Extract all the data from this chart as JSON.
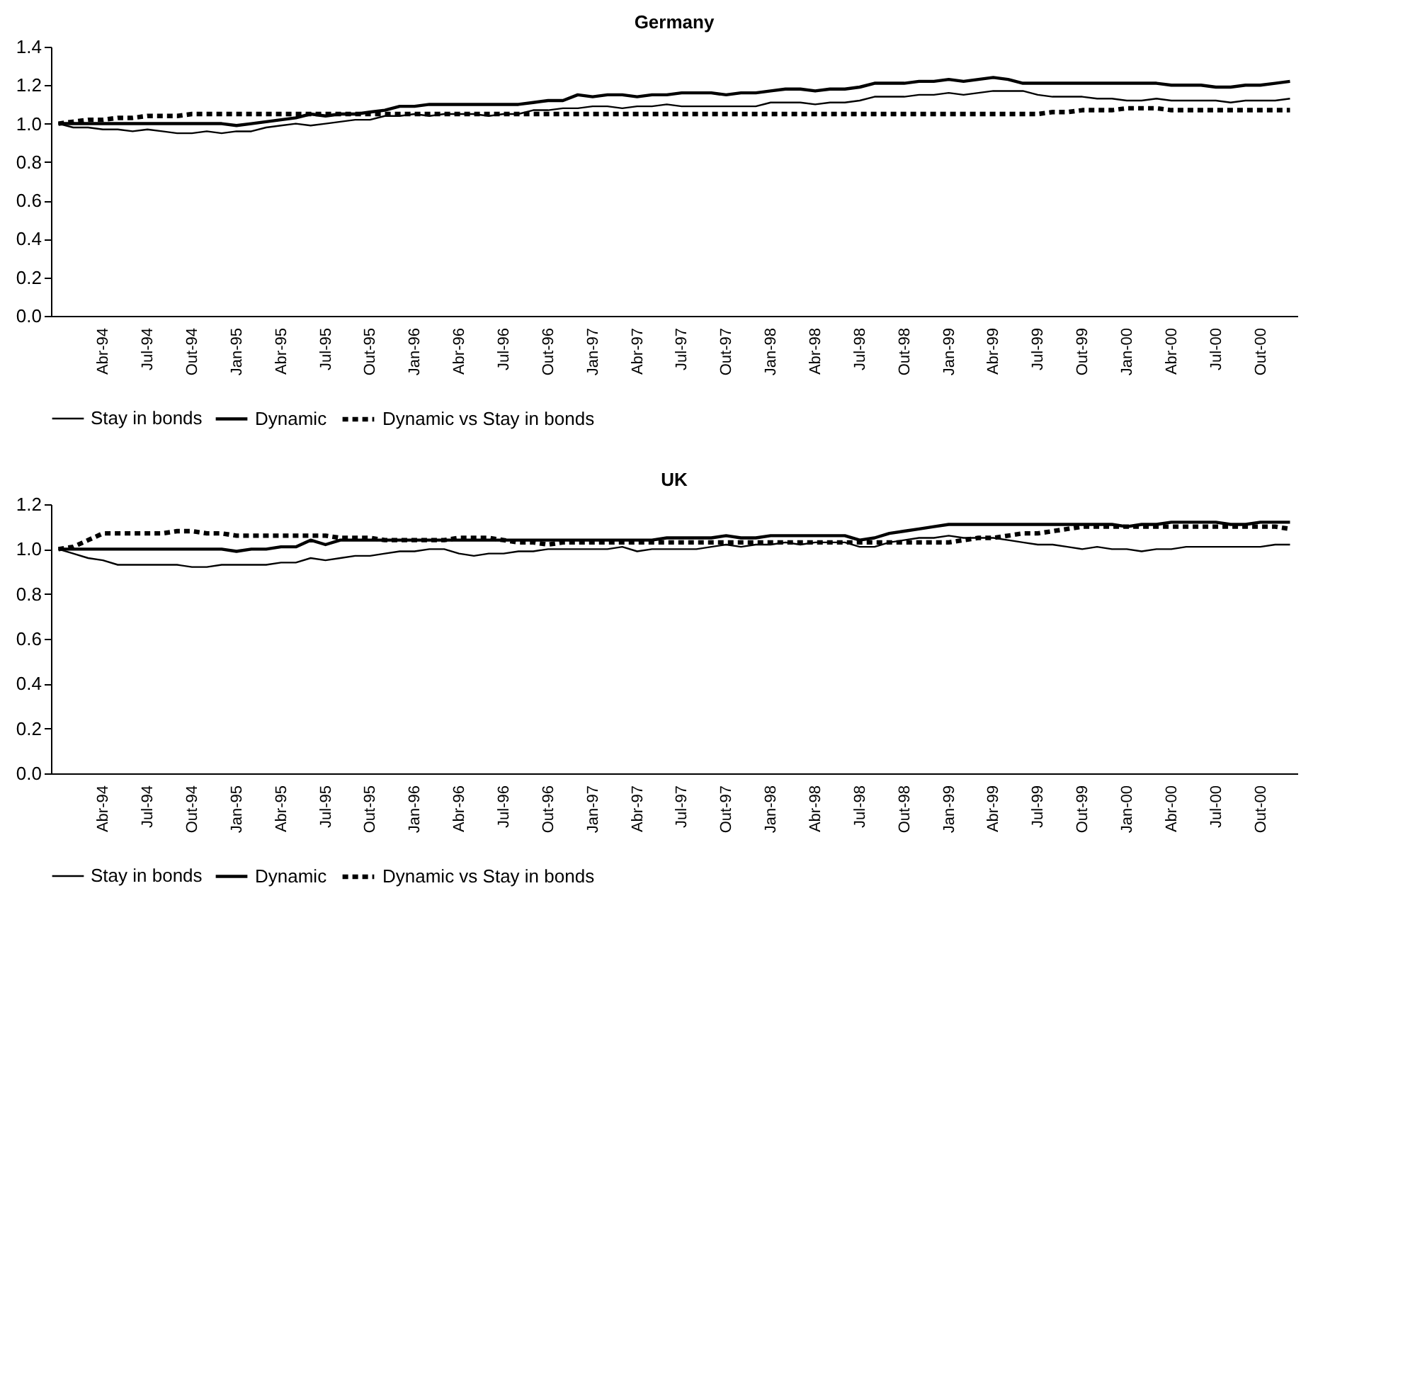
{
  "chart_data": [
    {
      "type": "line",
      "title": "Germany",
      "legend": "bottom",
      "grid": false,
      "categories": [
        null,
        null,
        null,
        "Abr-94",
        null,
        null,
        "Jul-94",
        null,
        null,
        "Out-94",
        null,
        null,
        "Jan-95",
        null,
        null,
        "Abr-95",
        null,
        null,
        "Jul-95",
        null,
        null,
        "Out-95",
        null,
        null,
        "Jan-96",
        null,
        null,
        "Abr-96",
        null,
        null,
        "Jul-96",
        null,
        null,
        "Out-96",
        null,
        null,
        "Jan-97",
        null,
        null,
        "Abr-97",
        null,
        null,
        "Jul-97",
        null,
        null,
        "Out-97",
        null,
        null,
        "Jan-98",
        null,
        null,
        "Abr-98",
        null,
        null,
        "Jul-98",
        null,
        null,
        "Out-98",
        null,
        null,
        "Jan-99",
        null,
        null,
        "Abr-99",
        null,
        null,
        "Jul-99",
        null,
        null,
        "Out-99",
        null,
        null,
        "Jan-00",
        null,
        null,
        "Abr-00",
        null,
        null,
        "Jul-00",
        null,
        null,
        "Out-00",
        null,
        null
      ],
      "ylim": [
        0,
        1.4
      ],
      "yticks": [
        {
          "value": 0,
          "label": "0.0"
        },
        {
          "value": 0.2,
          "label": "0.2"
        },
        {
          "value": 0.4,
          "label": "0.4"
        },
        {
          "value": 0.6,
          "label": "0.6"
        },
        {
          "value": 0.8,
          "label": "0.8"
        },
        {
          "value": 1,
          "label": "1.0"
        },
        {
          "value": 1.2,
          "label": "1.2"
        },
        {
          "value": 1.4,
          "label": "1.4"
        }
      ],
      "series": [
        {
          "name": "Stay in bonds",
          "color": "#000000",
          "line_style": "solid",
          "values": [
            1.0,
            0.98,
            0.98,
            0.97,
            0.97,
            0.96,
            0.97,
            0.96,
            0.95,
            0.95,
            0.96,
            0.95,
            0.96,
            0.96,
            0.98,
            0.99,
            1.0,
            0.99,
            1.0,
            1.01,
            1.02,
            1.02,
            1.04,
            1.04,
            1.05,
            1.04,
            1.05,
            1.05,
            1.05,
            1.04,
            1.05,
            1.05,
            1.07,
            1.07,
            1.08,
            1.08,
            1.09,
            1.09,
            1.08,
            1.09,
            1.09,
            1.1,
            1.09,
            1.09,
            1.09,
            1.09,
            1.09,
            1.09,
            1.11,
            1.11,
            1.11,
            1.1,
            1.11,
            1.11,
            1.12,
            1.14,
            1.14,
            1.14,
            1.15,
            1.15,
            1.16,
            1.15,
            1.16,
            1.17,
            1.17,
            1.17,
            1.15,
            1.14,
            1.14,
            1.14,
            1.13,
            1.13,
            1.12,
            1.12,
            1.13,
            1.12,
            1.12,
            1.12,
            1.12,
            1.11,
            1.12,
            1.12,
            1.12,
            1.13
          ]
        },
        {
          "name": "Dynamic",
          "color": "#000000",
          "line_style": "solid",
          "values": [
            1.0,
            1.0,
            1.0,
            1.0,
            1.0,
            1.0,
            1.0,
            1.0,
            1.0,
            1.0,
            1.0,
            1.0,
            0.99,
            1.0,
            1.01,
            1.02,
            1.03,
            1.05,
            1.04,
            1.05,
            1.05,
            1.06,
            1.07,
            1.09,
            1.09,
            1.1,
            1.1,
            1.1,
            1.1,
            1.1,
            1.1,
            1.1,
            1.11,
            1.12,
            1.12,
            1.15,
            1.14,
            1.15,
            1.15,
            1.14,
            1.15,
            1.15,
            1.16,
            1.16,
            1.16,
            1.15,
            1.16,
            1.16,
            1.17,
            1.18,
            1.18,
            1.17,
            1.18,
            1.18,
            1.19,
            1.21,
            1.21,
            1.21,
            1.22,
            1.22,
            1.23,
            1.22,
            1.23,
            1.24,
            1.23,
            1.21,
            1.21,
            1.21,
            1.21,
            1.21,
            1.21,
            1.21,
            1.21,
            1.21,
            1.21,
            1.2,
            1.2,
            1.2,
            1.19,
            1.19,
            1.2,
            1.2,
            1.21,
            1.22
          ]
        },
        {
          "name": "Dynamic vs Stay in bonds",
          "color": "#000000",
          "line_style": "dashed",
          "values": [
            1.0,
            1.01,
            1.02,
            1.02,
            1.03,
            1.03,
            1.04,
            1.04,
            1.04,
            1.05,
            1.05,
            1.05,
            1.05,
            1.05,
            1.05,
            1.05,
            1.05,
            1.05,
            1.05,
            1.05,
            1.05,
            1.05,
            1.05,
            1.05,
            1.05,
            1.05,
            1.05,
            1.05,
            1.05,
            1.05,
            1.05,
            1.05,
            1.05,
            1.05,
            1.05,
            1.05,
            1.05,
            1.05,
            1.05,
            1.05,
            1.05,
            1.05,
            1.05,
            1.05,
            1.05,
            1.05,
            1.05,
            1.05,
            1.05,
            1.05,
            1.05,
            1.05,
            1.05,
            1.05,
            1.05,
            1.05,
            1.05,
            1.05,
            1.05,
            1.05,
            1.05,
            1.05,
            1.05,
            1.05,
            1.05,
            1.05,
            1.05,
            1.06,
            1.06,
            1.07,
            1.07,
            1.07,
            1.08,
            1.08,
            1.08,
            1.07,
            1.07,
            1.07,
            1.07,
            1.07,
            1.07,
            1.07,
            1.07,
            1.07
          ]
        }
      ]
    },
    {
      "type": "line",
      "title": "UK",
      "legend": "bottom",
      "grid": false,
      "categories": [
        null,
        null,
        null,
        "Abr-94",
        null,
        null,
        "Jul-94",
        null,
        null,
        "Out-94",
        null,
        null,
        "Jan-95",
        null,
        null,
        "Abr-95",
        null,
        null,
        "Jul-95",
        null,
        null,
        "Out-95",
        null,
        null,
        "Jan-96",
        null,
        null,
        "Abr-96",
        null,
        null,
        "Jul-96",
        null,
        null,
        "Out-96",
        null,
        null,
        "Jan-97",
        null,
        null,
        "Abr-97",
        null,
        null,
        "Jul-97",
        null,
        null,
        "Out-97",
        null,
        null,
        "Jan-98",
        null,
        null,
        "Abr-98",
        null,
        null,
        "Jul-98",
        null,
        null,
        "Out-98",
        null,
        null,
        "Jan-99",
        null,
        null,
        "Abr-99",
        null,
        null,
        "Jul-99",
        null,
        null,
        "Out-99",
        null,
        null,
        "Jan-00",
        null,
        null,
        "Abr-00",
        null,
        null,
        "Jul-00",
        null,
        null,
        "Out-00",
        null,
        null
      ],
      "ylim": [
        0,
        1.2
      ],
      "yticks": [
        {
          "value": 0,
          "label": "0.0"
        },
        {
          "value": 0.2,
          "label": "0.2"
        },
        {
          "value": 0.4,
          "label": "0.4"
        },
        {
          "value": 0.6,
          "label": "0.6"
        },
        {
          "value": 0.8,
          "label": "0.8"
        },
        {
          "value": 1,
          "label": "1.0"
        },
        {
          "value": 1.2,
          "label": "1.2"
        }
      ],
      "series": [
        {
          "name": "Stay in bonds",
          "color": "#000000",
          "line_style": "solid",
          "values": [
            1.0,
            0.98,
            0.96,
            0.95,
            0.93,
            0.93,
            0.93,
            0.93,
            0.93,
            0.92,
            0.92,
            0.93,
            0.93,
            0.93,
            0.93,
            0.94,
            0.94,
            0.96,
            0.95,
            0.96,
            0.97,
            0.97,
            0.98,
            0.99,
            0.99,
            1.0,
            1.0,
            0.98,
            0.97,
            0.98,
            0.98,
            0.99,
            0.99,
            1.0,
            1.0,
            1.0,
            1.0,
            1.0,
            1.01,
            0.99,
            1.0,
            1.0,
            1.0,
            1.0,
            1.01,
            1.02,
            1.01,
            1.02,
            1.02,
            1.03,
            1.02,
            1.03,
            1.03,
            1.03,
            1.01,
            1.01,
            1.03,
            1.04,
            1.05,
            1.05,
            1.06,
            1.05,
            1.05,
            1.05,
            1.04,
            1.03,
            1.02,
            1.02,
            1.01,
            1.0,
            1.01,
            1.0,
            1.0,
            0.99,
            1.0,
            1.0,
            1.01,
            1.01,
            1.01,
            1.01,
            1.01,
            1.01,
            1.02,
            1.02
          ]
        },
        {
          "name": "Dynamic",
          "color": "#000000",
          "line_style": "solid",
          "values": [
            1.0,
            1.0,
            1.0,
            1.0,
            1.0,
            1.0,
            1.0,
            1.0,
            1.0,
            1.0,
            1.0,
            1.0,
            0.99,
            1.0,
            1.0,
            1.01,
            1.01,
            1.04,
            1.02,
            1.04,
            1.04,
            1.04,
            1.04,
            1.04,
            1.04,
            1.04,
            1.04,
            1.04,
            1.04,
            1.04,
            1.04,
            1.04,
            1.04,
            1.04,
            1.04,
            1.04,
            1.04,
            1.04,
            1.04,
            1.04,
            1.04,
            1.05,
            1.05,
            1.05,
            1.05,
            1.06,
            1.05,
            1.05,
            1.06,
            1.06,
            1.06,
            1.06,
            1.06,
            1.06,
            1.04,
            1.05,
            1.07,
            1.08,
            1.09,
            1.1,
            1.11,
            1.11,
            1.11,
            1.11,
            1.11,
            1.11,
            1.11,
            1.11,
            1.11,
            1.11,
            1.11,
            1.11,
            1.1,
            1.11,
            1.11,
            1.12,
            1.12,
            1.12,
            1.12,
            1.11,
            1.11,
            1.12,
            1.12,
            1.12
          ]
        },
        {
          "name": "Dynamic vs Stay in bonds",
          "color": "#000000",
          "line_style": "dashed",
          "values": [
            1.0,
            1.01,
            1.04,
            1.07,
            1.07,
            1.07,
            1.07,
            1.07,
            1.08,
            1.08,
            1.07,
            1.07,
            1.06,
            1.06,
            1.06,
            1.06,
            1.06,
            1.06,
            1.06,
            1.05,
            1.05,
            1.05,
            1.04,
            1.04,
            1.04,
            1.04,
            1.04,
            1.05,
            1.05,
            1.05,
            1.04,
            1.03,
            1.03,
            1.02,
            1.03,
            1.03,
            1.03,
            1.03,
            1.03,
            1.03,
            1.03,
            1.03,
            1.03,
            1.03,
            1.03,
            1.03,
            1.03,
            1.03,
            1.03,
            1.03,
            1.03,
            1.03,
            1.03,
            1.03,
            1.03,
            1.03,
            1.03,
            1.03,
            1.03,
            1.03,
            1.03,
            1.04,
            1.05,
            1.05,
            1.06,
            1.07,
            1.07,
            1.08,
            1.09,
            1.1,
            1.1,
            1.1,
            1.1,
            1.1,
            1.1,
            1.1,
            1.1,
            1.1,
            1.1,
            1.1,
            1.1,
            1.1,
            1.1,
            1.09
          ]
        }
      ]
    }
  ]
}
